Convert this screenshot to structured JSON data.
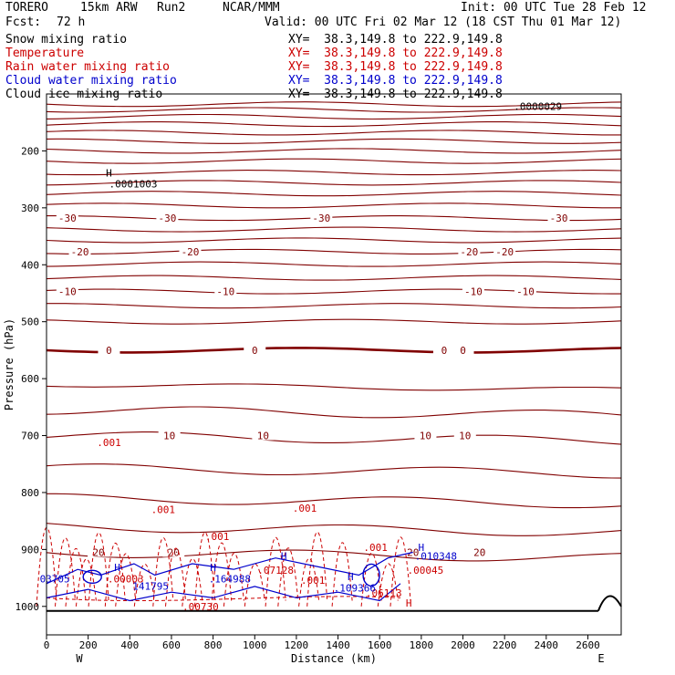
{
  "header": {
    "model": "TORERO",
    "grid": "15km ARW",
    "run": "Run2",
    "org": "NCAR/MMM",
    "init": "Init: 00 UTC Tue 28 Feb 12",
    "fcst_label": "Fcst:",
    "fcst_value": "72 h",
    "valid": "Valid: 00 UTC Fri 02 Mar 12 (18 CST Thu 01 Mar 12)"
  },
  "legend": [
    {
      "label": "Snow mixing ratio",
      "xy": "XY=  38.3,149.8 to 222.9,149.8",
      "color": "#000000"
    },
    {
      "label": "Temperature",
      "xy": "XY=  38.3,149.8 to 222.9,149.8",
      "color": "#cc0000"
    },
    {
      "label": "Rain water mixing ratio",
      "xy": "XY=  38.3,149.8 to 222.9,149.8",
      "color": "#cc0000"
    },
    {
      "label": "Cloud water mixing ratio",
      "xy": "XY=  38.3,149.8 to 222.9,149.8",
      "color": "#0000cc"
    },
    {
      "label": "Cloud ice mixing ratio",
      "xy": "XY=  38.3,149.8 to 222.9,149.8",
      "color": "#000000"
    }
  ],
  "chart_data": {
    "type": "cross-section",
    "xlabel": "Distance (km)",
    "ylabel": "Pressure (hPa)",
    "xlim": [
      0,
      2760
    ],
    "ylim": [
      1050,
      100
    ],
    "x_ticks": [
      0,
      200,
      400,
      600,
      800,
      1000,
      1200,
      1400,
      1600,
      1800,
      2000,
      2200,
      2400,
      2600
    ],
    "y_ticks": [
      200,
      300,
      400,
      500,
      600,
      700,
      800,
      900,
      1000
    ],
    "x_end_labels": {
      "left": "W",
      "right": "E"
    },
    "temperature_contours": [
      {
        "value": -30,
        "pressure": 318,
        "labels": [
          {
            "x": 100,
            "text": "-30"
          },
          {
            "x": 580,
            "text": "-30"
          },
          {
            "x": 1320,
            "text": "-30"
          },
          {
            "x": 2460,
            "text": "-30"
          }
        ]
      },
      {
        "value": -20,
        "pressure": 377,
        "labels": [
          {
            "x": 160,
            "text": "-20"
          },
          {
            "x": 690,
            "text": "-20"
          },
          {
            "x": 2030,
            "text": "-20"
          },
          {
            "x": 2200,
            "text": "-20"
          }
        ]
      },
      {
        "value": -10,
        "pressure": 447,
        "labels": [
          {
            "x": 100,
            "text": "-10"
          },
          {
            "x": 860,
            "text": "-10"
          },
          {
            "x": 2050,
            "text": "-10"
          },
          {
            "x": 2300,
            "text": "-10"
          }
        ]
      },
      {
        "value": 0,
        "pressure": 550,
        "labels": [
          {
            "x": 300,
            "text": "0"
          },
          {
            "x": 1000,
            "text": "0"
          },
          {
            "x": 1910,
            "text": "0"
          },
          {
            "x": 2000,
            "text": "0"
          }
        ]
      },
      {
        "value": 10,
        "pressure": 700,
        "labels": [
          {
            "x": 590,
            "text": "10"
          },
          {
            "x": 1040,
            "text": "10"
          },
          {
            "x": 1820,
            "text": "10"
          },
          {
            "x": 2010,
            "text": "10"
          }
        ]
      },
      {
        "value": 20,
        "pressure": 905,
        "labels": [
          {
            "x": 250,
            "text": "20"
          },
          {
            "x": 610,
            "text": "20"
          },
          {
            "x": 1760,
            "text": "20"
          },
          {
            "x": 2080,
            "text": "20"
          }
        ]
      }
    ],
    "temperature_isotherm_pressures": [
      118,
      128,
      140,
      153,
      168,
      183,
      200,
      218,
      238,
      256,
      275,
      296,
      318,
      338,
      357,
      377,
      399,
      423,
      447,
      472,
      500,
      550,
      610,
      655,
      700,
      757,
      810,
      860,
      905
    ],
    "rain_annotations": [
      {
        "x": 300,
        "p": 718,
        "text": ".001"
      },
      {
        "x": 560,
        "p": 836,
        "text": ".001"
      },
      {
        "x": 820,
        "p": 883,
        "text": ".001"
      },
      {
        "x": 1240,
        "p": 834,
        "text": ".001"
      },
      {
        "x": 1580,
        "p": 903,
        "text": ".001"
      },
      {
        "x": 380,
        "p": 958,
        "text": ".00003"
      },
      {
        "x": 1100,
        "p": 943,
        "text": ".07128"
      },
      {
        "x": 1280,
        "p": 960,
        "text": ".001"
      },
      {
        "x": 1620,
        "p": 983,
        "text": ".06113"
      },
      {
        "x": 1820,
        "p": 943,
        "text": ".00045"
      },
      {
        "x": 740,
        "p": 1007,
        "text": ".00730"
      }
    ],
    "cloud_water_annotations": [
      {
        "x": 40,
        "p": 958,
        "text": "03705"
      },
      {
        "x": 500,
        "p": 971,
        "text": "141795"
      },
      {
        "x": 880,
        "p": 958,
        "text": ".164988"
      },
      {
        "x": 1480,
        "p": 974,
        "text": ".109366"
      },
      {
        "x": 1870,
        "p": 918,
        "text": ".010348"
      }
    ],
    "highs": [
      {
        "x": 300,
        "p": 245,
        "label": "H",
        "value": ".0001003",
        "color": "#000000"
      },
      {
        "x": 1740,
        "p": 1000,
        "label": "H",
        "value": "",
        "color": "#cc0000"
      },
      {
        "x": 340,
        "p": 938,
        "label": "H",
        "value": "",
        "color": "#0000cc"
      },
      {
        "x": 800,
        "p": 938,
        "label": "H",
        "value": "",
        "color": "#0000cc"
      },
      {
        "x": 1140,
        "p": 918,
        "label": "H",
        "value": "",
        "color": "#0000cc"
      },
      {
        "x": 1460,
        "p": 954,
        "label": "H",
        "value": "",
        "color": "#0000cc"
      },
      {
        "x": 1800,
        "p": 903,
        "label": "H",
        "value": "",
        "color": "#0000cc"
      }
    ],
    "snow_annotation": {
      "x": 2360,
      "p": 128,
      "text": ".0000029"
    }
  },
  "colors": {
    "temperature": "#800000",
    "rain": "#cc0000",
    "cloud_water": "#0000cc",
    "axis": "#000000",
    "ground": "#000000"
  }
}
